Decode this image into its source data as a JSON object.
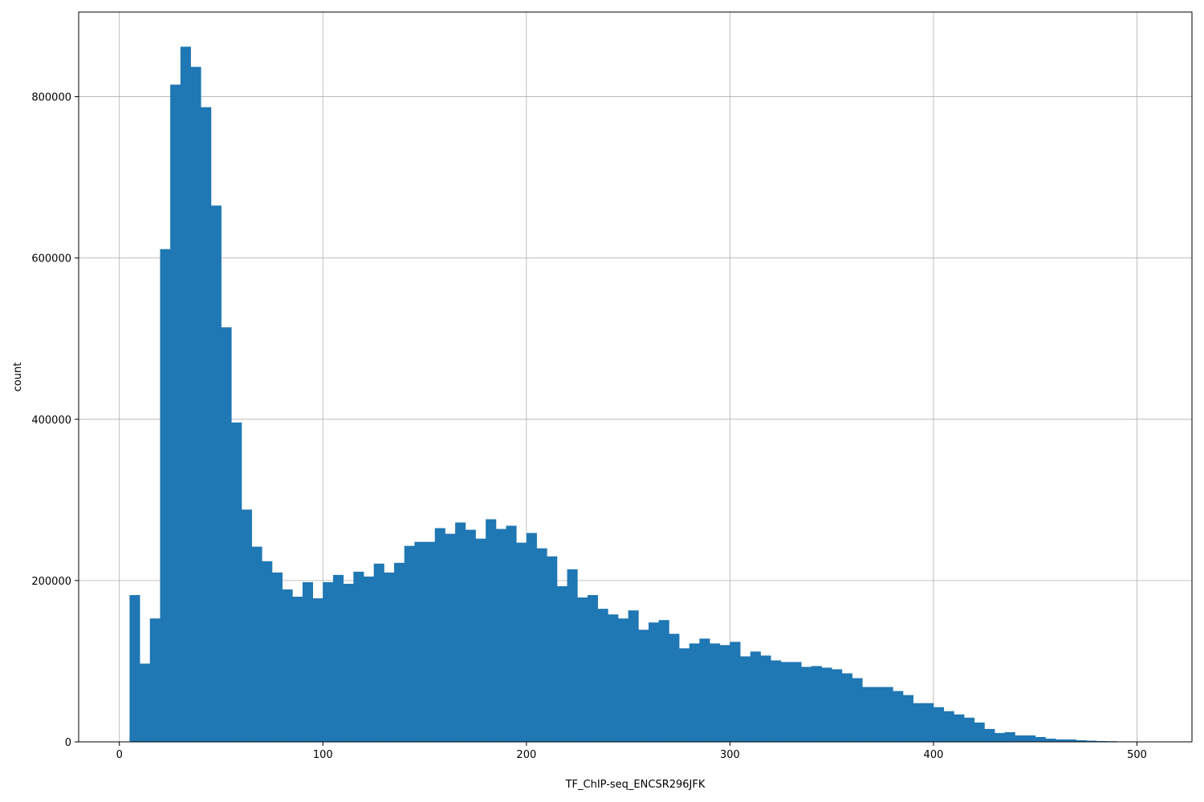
{
  "chart_data": {
    "type": "bar",
    "title": "",
    "xlabel": "TF_ChIP-seq_ENCSR296JFK",
    "ylabel": "count",
    "xlim": [
      -20,
      527
    ],
    "ylim": [
      0,
      905000
    ],
    "x_ticks": [
      0,
      100,
      200,
      300,
      400,
      500
    ],
    "y_ticks": [
      0,
      200000,
      400000,
      600000,
      800000
    ],
    "grid": true,
    "bar_color": "#1f77b4",
    "bin_start": 5,
    "bin_width": 5,
    "values": [
      182000,
      97000,
      153000,
      611000,
      815000,
      862000,
      837000,
      787000,
      665000,
      514000,
      396000,
      288000,
      242000,
      224000,
      210000,
      189000,
      180000,
      198000,
      178000,
      198000,
      207000,
      196000,
      211000,
      205000,
      221000,
      210000,
      222000,
      243000,
      248000,
      248000,
      265000,
      258000,
      272000,
      263000,
      252000,
      276000,
      264000,
      268000,
      247000,
      259000,
      240000,
      230000,
      193000,
      214000,
      179000,
      182000,
      165000,
      158000,
      153000,
      163000,
      139000,
      148000,
      151000,
      134000,
      116000,
      122000,
      128000,
      122000,
      120000,
      124000,
      106000,
      112000,
      107000,
      101000,
      99000,
      99000,
      93000,
      94000,
      92000,
      90000,
      85000,
      79000,
      68000,
      68000,
      68000,
      63000,
      58000,
      48000,
      48000,
      43000,
      38000,
      34000,
      30000,
      24000,
      16000,
      11000,
      12000,
      8000,
      8000,
      6000,
      4000,
      3000,
      3000,
      2000,
      1500,
      1000,
      800,
      500,
      400,
      300
    ]
  }
}
